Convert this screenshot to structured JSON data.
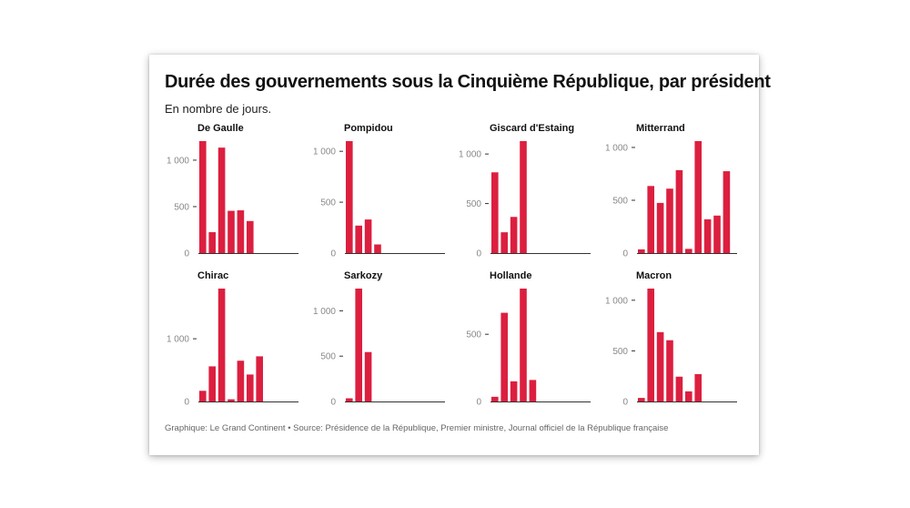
{
  "title": "Durée des gouvernements sous la Cinquième République, par président",
  "subtitle": "En nombre de jours.",
  "footer": "Graphique: Le Grand Continent • Source: Présidence de la République, Premier ministre, Journal officiel de la République française",
  "colors": {
    "bar": "#dc1f3f",
    "axis": "#333333",
    "tick_label": "#888888"
  },
  "chart_data": [
    {
      "type": "bar",
      "title": "De Gaulle",
      "values": [
        1205,
        225,
        1135,
        455,
        460,
        345
      ],
      "yticks": [
        0,
        500,
        1000
      ],
      "tick_labels": [
        "0",
        "500",
        "1 000"
      ],
      "ylim": [
        0,
        1205
      ]
    },
    {
      "type": "bar",
      "title": "Pompidou",
      "values": [
        1100,
        270,
        330,
        85
      ],
      "yticks": [
        0,
        500,
        1000
      ],
      "tick_labels": [
        "0",
        "500",
        "1 000"
      ],
      "ylim": [
        0,
        1100
      ]
    },
    {
      "type": "bar",
      "title": "Giscard d'Estaing",
      "values": [
        815,
        210,
        365,
        1130
      ],
      "yticks": [
        0,
        500,
        1000
      ],
      "tick_labels": [
        "0",
        "500",
        "1 000"
      ],
      "ylim": [
        0,
        1130
      ]
    },
    {
      "type": "bar",
      "title": "Mitterrand",
      "values": [
        35,
        635,
        475,
        610,
        785,
        40,
        1060,
        320,
        355,
        775
      ],
      "yticks": [
        0,
        500,
        1000
      ],
      "tick_labels": [
        "0",
        "500",
        "1 000"
      ],
      "ylim": [
        0,
        1060
      ]
    },
    {
      "type": "bar",
      "title": "Chirac",
      "values": [
        170,
        560,
        1800,
        35,
        650,
        430,
        720
      ],
      "yticks": [
        0,
        1000
      ],
      "tick_labels": [
        "0",
        "1 000"
      ],
      "ylim": [
        0,
        1800
      ]
    },
    {
      "type": "bar",
      "title": "Sarkozy",
      "values": [
        35,
        1245,
        545
      ],
      "yticks": [
        0,
        500,
        1000
      ],
      "tick_labels": [
        "0",
        "500",
        "1 000"
      ],
      "ylim": [
        0,
        1245
      ]
    },
    {
      "type": "bar",
      "title": "Hollande",
      "values": [
        35,
        660,
        150,
        840,
        160
      ],
      "yticks": [
        0,
        500
      ],
      "tick_labels": [
        "0",
        "500"
      ],
      "ylim": [
        0,
        840
      ]
    },
    {
      "type": "bar",
      "title": "Macron",
      "values": [
        35,
        1115,
        685,
        605,
        245,
        100,
        270
      ],
      "yticks": [
        0,
        500,
        1000
      ],
      "tick_labels": [
        "0",
        "500",
        "1 000"
      ],
      "ylim": [
        0,
        1115
      ]
    }
  ]
}
